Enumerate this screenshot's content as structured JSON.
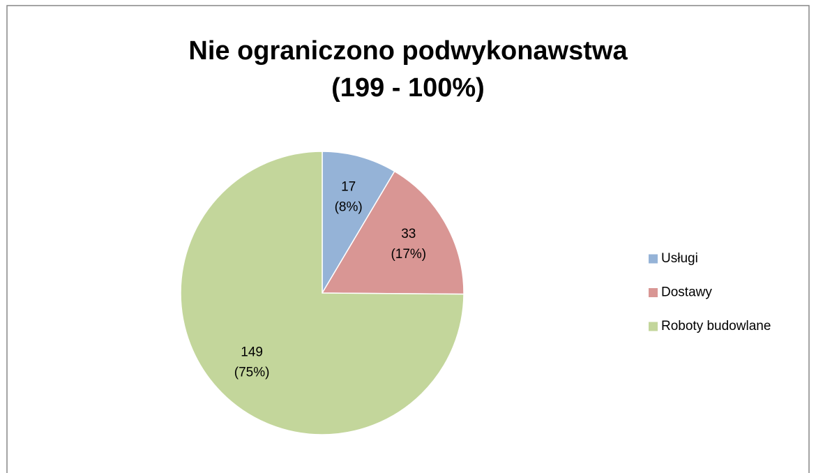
{
  "chart_data": {
    "type": "pie",
    "title": [
      "Nie ograniczono podwykonawstwa",
      "(199 - 100%)"
    ],
    "categories": [
      "Usługi",
      "Dostawy",
      "Roboty budowlane"
    ],
    "values": [
      17,
      33,
      149
    ],
    "value_labels": [
      [
        "17",
        "(8%)"
      ],
      [
        "33",
        "(17%)"
      ],
      [
        "149",
        "(75%)"
      ]
    ],
    "colors": [
      "#95b3d7",
      "#d99694",
      "#c3d69b"
    ],
    "legend": "right"
  }
}
